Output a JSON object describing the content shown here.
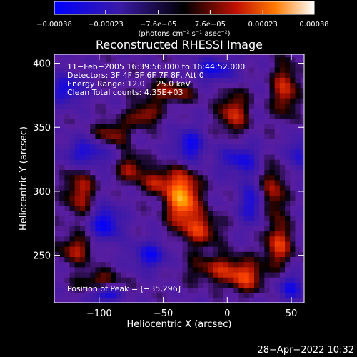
{
  "chart_data": {
    "type": "heatmap",
    "title": "Reconstructed RHESSI Image",
    "xlabel": "Heliocentric X (arcsec)",
    "ylabel": "Heliocentric Y (arcsec)",
    "xlim": [
      -135,
      60
    ],
    "ylim": [
      213,
      407
    ],
    "x_ticks": [
      -100,
      -50,
      0,
      50
    ],
    "x_tick_labels": [
      "−100",
      "−50",
      "0",
      "50"
    ],
    "y_ticks": [
      250,
      300,
      350,
      400
    ],
    "y_tick_labels": [
      "250",
      "300",
      "350",
      "400"
    ],
    "colorbar": {
      "range": [
        -0.00038,
        0.00038
      ],
      "ticks": [
        -0.00038,
        -0.00023,
        -7.6e-05,
        7.6e-05,
        0.00023,
        0.00038
      ],
      "tick_labels": [
        "−0.00038",
        "−0.00023",
        "−7.6e−05",
        "7.6e−05",
        "0.00023",
        "0.00038"
      ],
      "unit_label": "(photons cm⁻² s⁻¹ asec⁻²)"
    },
    "annotations": [
      "11−Feb−2005 16:39:56.000 to 16:44:52.000",
      "Detectors: 3F 4F 5F 6F 7F 8F, Att 0",
      "Energy Range: 12.0 − 25.0 keV",
      "Clean     Total counts: 4.35E+03"
    ],
    "peak_label": "Position of Peak = [−35,296]",
    "peak": [
      -35,
      296
    ],
    "sources": [
      {
        "x": -35,
        "y": 296,
        "amp": 1.0,
        "sx": 9,
        "sy": 16
      },
      {
        "x": -55,
        "y": 308,
        "amp": 0.55,
        "sx": 7,
        "sy": 7
      },
      {
        "x": -20,
        "y": 270,
        "amp": 0.55,
        "sx": 10,
        "sy": 9
      },
      {
        "x": -5,
        "y": 240,
        "amp": 0.5,
        "sx": 18,
        "sy": 8
      },
      {
        "x": -115,
        "y": 300,
        "amp": 0.55,
        "sx": 8,
        "sy": 14
      },
      {
        "x": -118,
        "y": 255,
        "amp": 0.5,
        "sx": 10,
        "sy": 8
      },
      {
        "x": -75,
        "y": 318,
        "amp": 0.55,
        "sx": 7,
        "sy": 8
      },
      {
        "x": -90,
        "y": 345,
        "amp": 0.5,
        "sx": 10,
        "sy": 7
      },
      {
        "x": -65,
        "y": 360,
        "amp": 0.55,
        "sx": 9,
        "sy": 6
      },
      {
        "x": -45,
        "y": 378,
        "amp": 0.5,
        "sx": 14,
        "sy": 6
      },
      {
        "x": 5,
        "y": 362,
        "amp": 0.6,
        "sx": 8,
        "sy": 12
      },
      {
        "x": 45,
        "y": 380,
        "amp": 0.6,
        "sx": 7,
        "sy": 15
      },
      {
        "x": 35,
        "y": 300,
        "amp": 0.55,
        "sx": 7,
        "sy": 16
      },
      {
        "x": 40,
        "y": 258,
        "amp": 0.6,
        "sx": 8,
        "sy": 12
      },
      {
        "x": 15,
        "y": 232,
        "amp": 0.5,
        "sx": 10,
        "sy": 8
      },
      {
        "x": -100,
        "y": 230,
        "amp": 0.45,
        "sx": 12,
        "sy": 6
      },
      {
        "x": -95,
        "y": 220,
        "amp": -0.7,
        "sx": 8,
        "sy": 5
      },
      {
        "x": -60,
        "y": 250,
        "amp": -0.6,
        "sx": 10,
        "sy": 8
      },
      {
        "x": -95,
        "y": 275,
        "amp": -0.7,
        "sx": 9,
        "sy": 10
      },
      {
        "x": -110,
        "y": 330,
        "amp": -0.6,
        "sx": 12,
        "sy": 8
      },
      {
        "x": -30,
        "y": 335,
        "amp": -0.7,
        "sx": 8,
        "sy": 10
      },
      {
        "x": 10,
        "y": 325,
        "amp": -0.55,
        "sx": 12,
        "sy": 9
      },
      {
        "x": 20,
        "y": 290,
        "amp": -0.6,
        "sx": 7,
        "sy": 12
      },
      {
        "x": 55,
        "y": 330,
        "amp": -0.5,
        "sx": 6,
        "sy": 10
      },
      {
        "x": -10,
        "y": 395,
        "amp": -0.6,
        "sx": 12,
        "sy": 7
      },
      {
        "x": -125,
        "y": 380,
        "amp": -0.6,
        "sx": 10,
        "sy": 8
      },
      {
        "x": 50,
        "y": 225,
        "amp": -0.55,
        "sx": 8,
        "sy": 8
      }
    ]
  },
  "footer": {
    "date": "28−Apr−2022 10:32"
  }
}
